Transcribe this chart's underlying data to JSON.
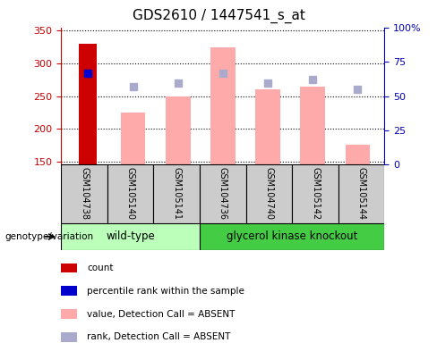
{
  "title": "GDS2610 / 1447541_s_at",
  "samples": [
    "GSM104738",
    "GSM105140",
    "GSM105141",
    "GSM104736",
    "GSM104740",
    "GSM105142",
    "GSM105144"
  ],
  "ylim": [
    145,
    355
  ],
  "yticks": [
    150,
    200,
    250,
    300,
    350
  ],
  "right_yticks_vals": [
    0,
    25,
    50,
    75,
    100
  ],
  "right_yticks_labels": [
    "0",
    "25",
    "50",
    "75",
    "100%"
  ],
  "count_bar": {
    "index": 0,
    "value": 330,
    "color": "#cc0000"
  },
  "percentile_bar": {
    "index": 0,
    "value": 285,
    "color": "#0000cc"
  },
  "absent_values": [
    null,
    225,
    250,
    325,
    260,
    265,
    175
  ],
  "absent_ranks": [
    null,
    265,
    270,
    285,
    270,
    275,
    260
  ],
  "absent_value_color": "#ffaaaa",
  "absent_rank_color": "#aaaacc",
  "sample_box_color": "#cccccc",
  "group_wt_color": "#bbffbb",
  "group_ko_color": "#44cc44",
  "ylabel_color": "#cc0000",
  "right_ylabel_color": "#0000bb",
  "legend_items": [
    {
      "label": "count",
      "color": "#cc0000"
    },
    {
      "label": "percentile rank within the sample",
      "color": "#0000cc"
    },
    {
      "label": "value, Detection Call = ABSENT",
      "color": "#ffaaaa"
    },
    {
      "label": "rank, Detection Call = ABSENT",
      "color": "#aaaacc"
    }
  ],
  "wt_count": 3,
  "ko_count": 4
}
